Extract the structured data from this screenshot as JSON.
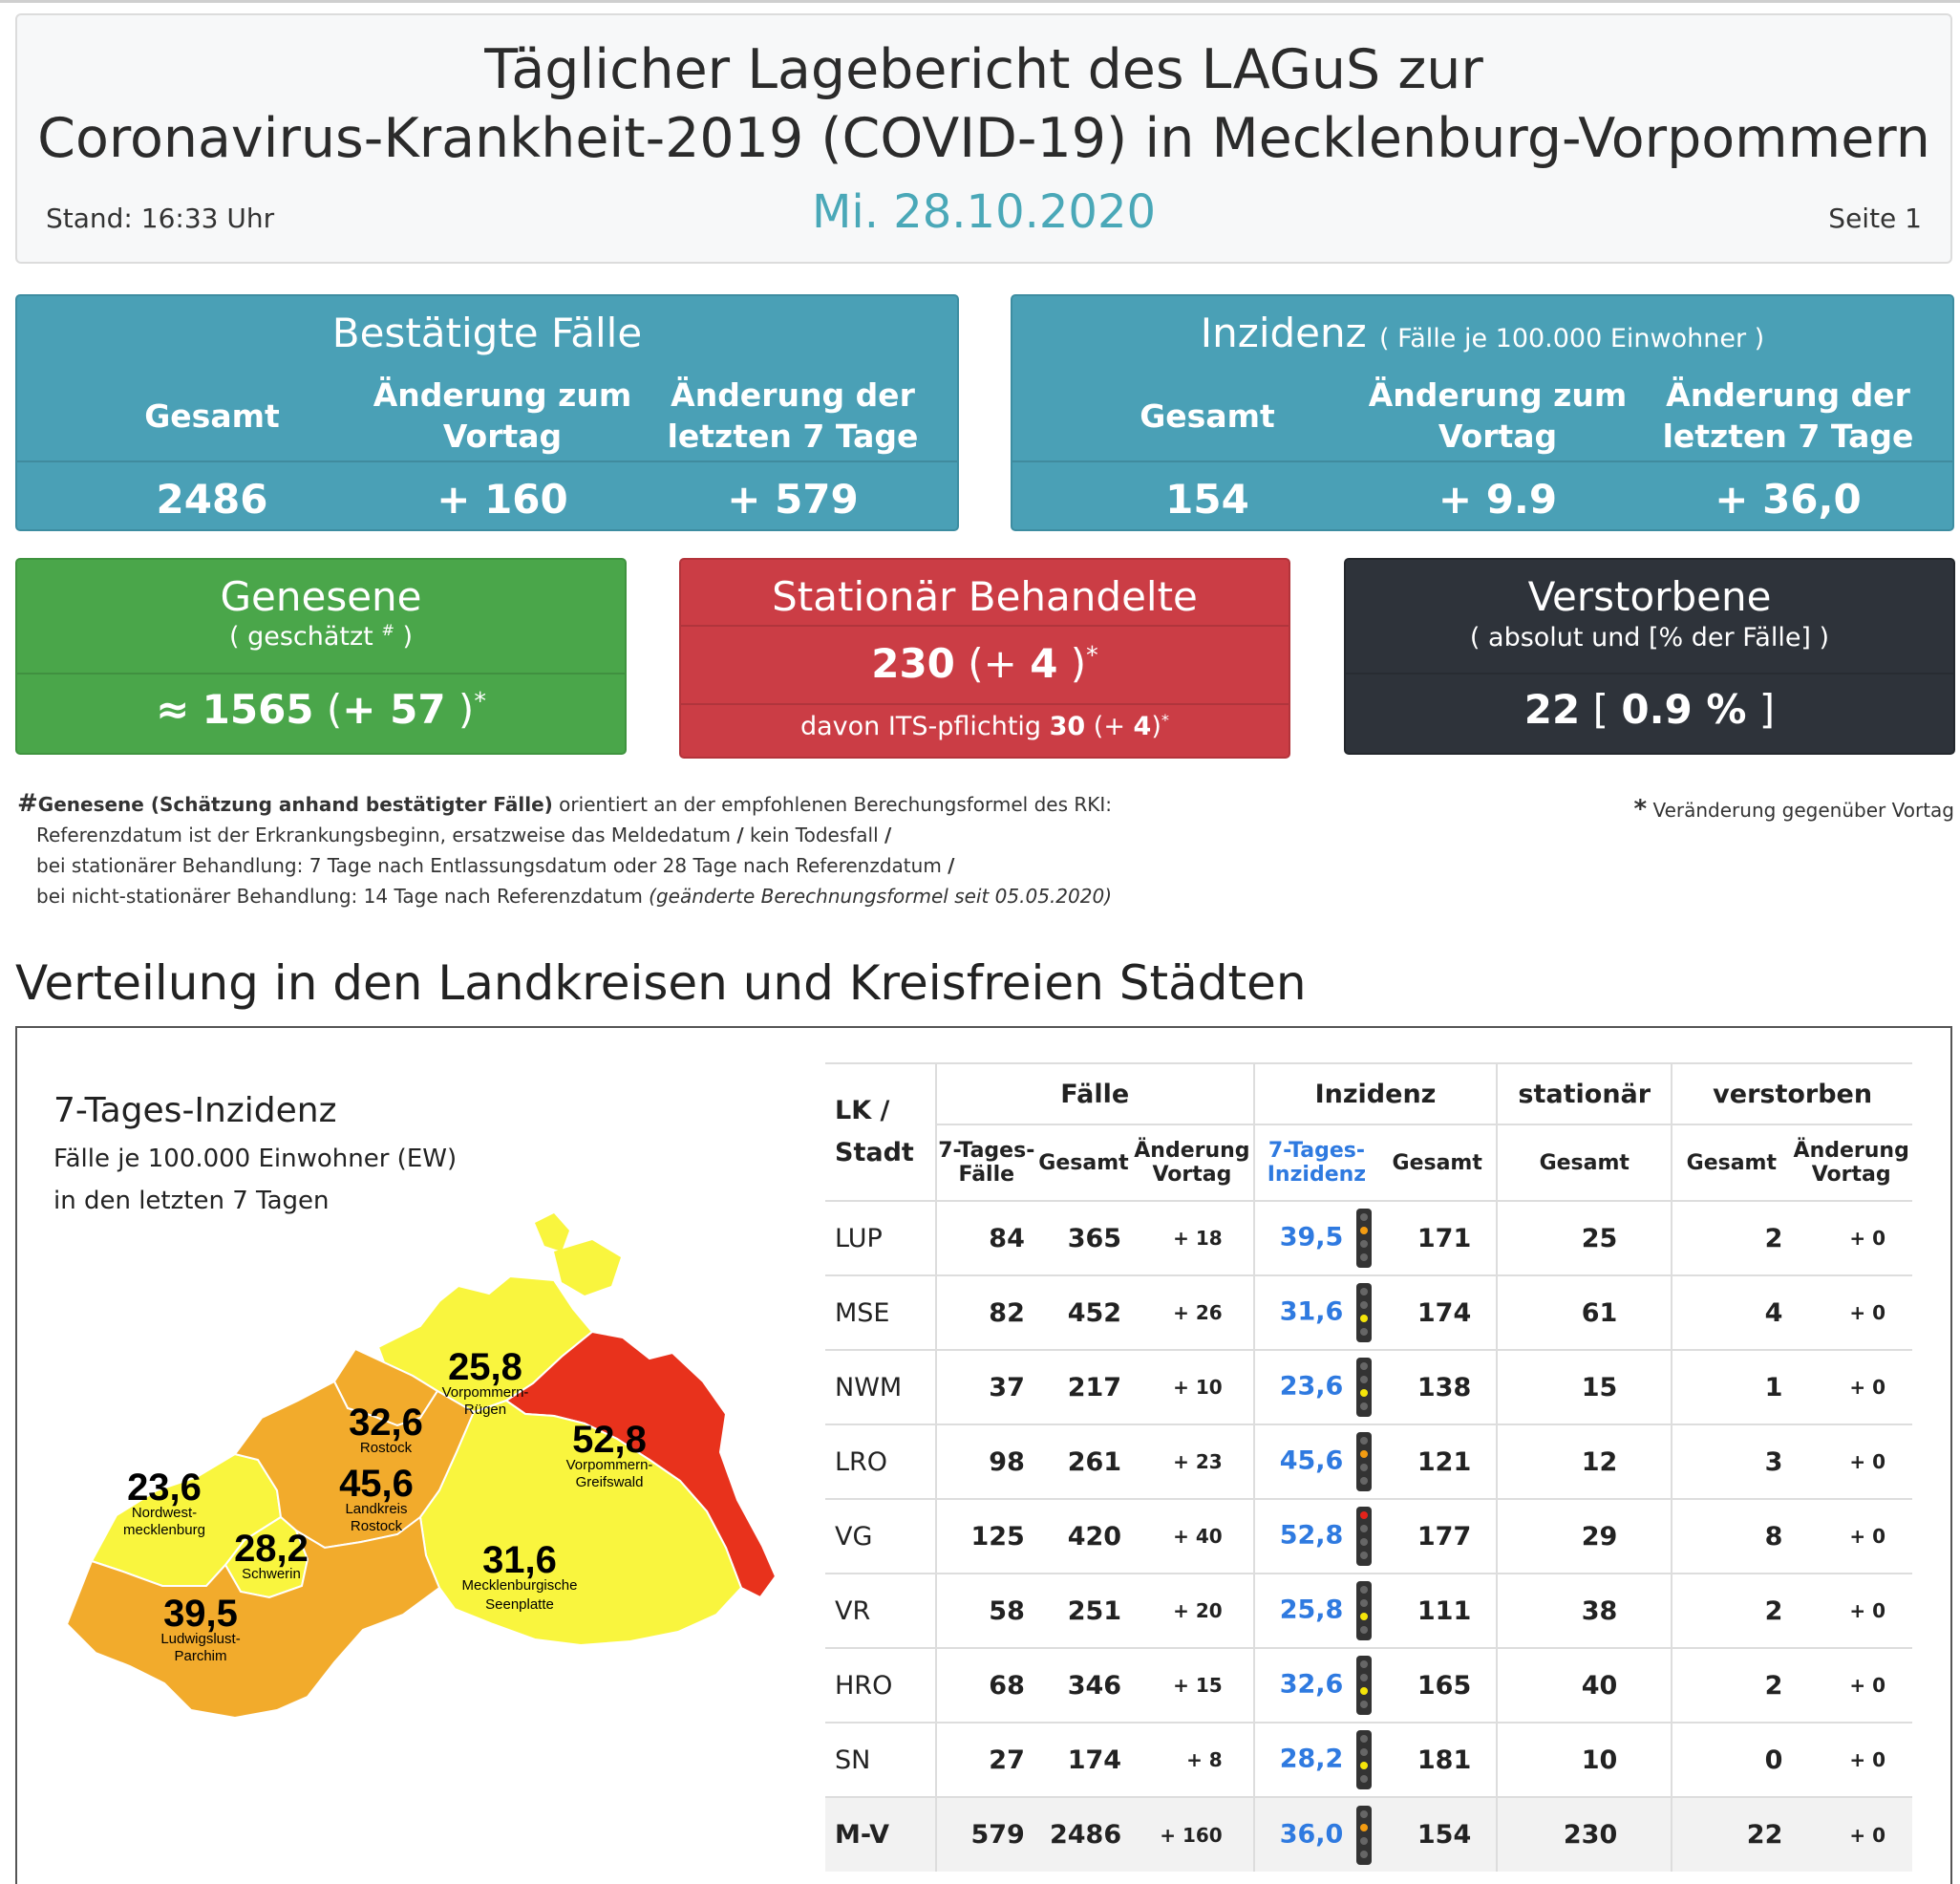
{
  "header": {
    "title_line1": "Täglicher Lagebericht des LAGuS zur",
    "title_line2": "Coronavirus-Krankheit-2019 (COVID-19) in Mecklenburg-Vorpommern",
    "stand": "Stand: 16:33 Uhr",
    "date": "Mi. 28.10.2020",
    "page": "Seite 1"
  },
  "confirmed": {
    "title": "Bestätigte Fälle",
    "col1": "Gesamt",
    "col2": "Änderung zum Vortag",
    "col3": "Änderung der letzten 7 Tage",
    "v1": "2486",
    "v2": "+ 160",
    "v3": "+ 579"
  },
  "incidence": {
    "title": "Inzidenz",
    "subtitle": "( Fälle je 100.000 Einwohner )",
    "col1": "Gesamt",
    "col2": "Änderung zum Vortag",
    "col3": "Änderung der letzten 7 Tage",
    "v1": "154",
    "v2": "+ 9.9",
    "v3": "+ 36,0"
  },
  "recovered": {
    "title": "Genesene",
    "subtitle_pre": "( geschätzt ",
    "subtitle_mark": "#",
    "subtitle_post": " )",
    "approx": "≈",
    "value": "1565",
    "change": "+ 57",
    "star": "*"
  },
  "hospital": {
    "title": "Stationär Behandelte",
    "value": "230",
    "change": "+ 4",
    "star": "*",
    "its_label": "davon ITS-pflichtig",
    "its_value": "30",
    "its_change": "4"
  },
  "deaths": {
    "title": "Verstorbene",
    "subtitle": "( absolut und [% der Fälle] )",
    "value": "22",
    "pct": "0.9 %"
  },
  "notes": {
    "hash": "#",
    "bold": "Genesene (Schätzung anhand bestätigter Fälle)",
    "line1": " orientiert an der empfohlenen Berechungsformel des RKI:",
    "line2": "Referenzdatum ist der Erkrankungsbeginn, ersatzweise das Meldedatum",
    "line2b": "kein Todesfall",
    "line3": "bei stationärer Behandlung: 7 Tage nach Entlassungsdatum oder 28 Tage nach Referenzdatum",
    "line4": "bei nicht-stationärer Behandlung: 14 Tage nach Referenzdatum ",
    "line4i": "(geänderte Berechnungsformel seit 05.05.2020)",
    "slash": "/",
    "star": "*",
    "right": "Veränderung gegenüber Vortag"
  },
  "section_title": "Verteilung in den Landkreisen und Kreisfreien Städten",
  "map": {
    "title": "7-Tages-Inzidenz",
    "sub1": "Fälle je 100.000 Einwohner (EW)",
    "sub2": "in den letzten 7 Tagen",
    "regions": [
      {
        "value": "25,8",
        "name1": "Vorpommern-",
        "name2": "Rügen",
        "color": "#f9f53e"
      },
      {
        "value": "32,6",
        "name1": "Rostock",
        "name2": "",
        "color": "#f2ab2c"
      },
      {
        "value": "52,8",
        "name1": "Vorpommern-",
        "name2": "Greifswald",
        "color": "#e8321c"
      },
      {
        "value": "23,6",
        "name1": "Nordwest-",
        "name2": "mecklenburg",
        "color": "#f9f53e"
      },
      {
        "value": "45,6",
        "name1": "Landkreis",
        "name2": "Rostock",
        "color": "#f2ab2c"
      },
      {
        "value": "28,2",
        "name1": "Schwerin",
        "name2": "",
        "color": "#f9f53e"
      },
      {
        "value": "31,6",
        "name1": "Mecklenburgische",
        "name2": "Seenplatte",
        "color": "#f9f53e"
      },
      {
        "value": "39,5",
        "name1": "Ludwigslust-",
        "name2": "Parchim",
        "color": "#f2ab2c"
      }
    ]
  },
  "table": {
    "h_lk": "LK /",
    "h_stadt": "Stadt",
    "h_faelle": "Fälle",
    "h_inzidenz": "Inzidenz",
    "h_stationaer": "stationär",
    "h_verstorben": "verstorben",
    "s_7tf1": "7-Tages-",
    "s_7tf2": "Fälle",
    "s_gesamt": "Gesamt",
    "s_aend1": "Änderung",
    "s_aend2": "Vortag",
    "s_7ti1": "7-Tages-",
    "s_7ti2": "Inzidenz",
    "rows": [
      {
        "lk": "LUP",
        "f7": "84",
        "fg": "365",
        "fa": "+ 18",
        "i7": "39,5",
        "light": "orange",
        "ig": "171",
        "st": "25",
        "vg": "2",
        "va": "+ 0"
      },
      {
        "lk": "MSE",
        "f7": "82",
        "fg": "452",
        "fa": "+ 26",
        "i7": "31,6",
        "light": "yellow",
        "ig": "174",
        "st": "61",
        "vg": "4",
        "va": "+ 0"
      },
      {
        "lk": "NWM",
        "f7": "37",
        "fg": "217",
        "fa": "+ 10",
        "i7": "23,6",
        "light": "yellow",
        "ig": "138",
        "st": "15",
        "vg": "1",
        "va": "+ 0"
      },
      {
        "lk": "LRO",
        "f7": "98",
        "fg": "261",
        "fa": "+ 23",
        "i7": "45,6",
        "light": "orange",
        "ig": "121",
        "st": "12",
        "vg": "3",
        "va": "+ 0"
      },
      {
        "lk": "VG",
        "f7": "125",
        "fg": "420",
        "fa": "+ 40",
        "i7": "52,8",
        "light": "red",
        "ig": "177",
        "st": "29",
        "vg": "8",
        "va": "+ 0"
      },
      {
        "lk": "VR",
        "f7": "58",
        "fg": "251",
        "fa": "+ 20",
        "i7": "25,8",
        "light": "yellow",
        "ig": "111",
        "st": "38",
        "vg": "2",
        "va": "+ 0"
      },
      {
        "lk": "HRO",
        "f7": "68",
        "fg": "346",
        "fa": "+ 15",
        "i7": "32,6",
        "light": "yellow",
        "ig": "165",
        "st": "40",
        "vg": "2",
        "va": "+ 0"
      },
      {
        "lk": "SN",
        "f7": "27",
        "fg": "174",
        "fa": "+ 8",
        "i7": "28,2",
        "light": "yellow",
        "ig": "181",
        "st": "10",
        "vg": "0",
        "va": "+ 0"
      },
      {
        "lk": "M-V",
        "f7": "579",
        "fg": "2486",
        "fa": "+ 160",
        "i7": "36,0",
        "light": "orange",
        "ig": "154",
        "st": "230",
        "vg": "22",
        "va": "+ 0",
        "total": true
      }
    ]
  },
  "colors": {
    "teal": "#4aa0b6",
    "green": "#4aa64a",
    "red": "#cb3d45",
    "dark": "#2e333a",
    "date": "#4aa8b8",
    "link": "#2f7ae0"
  }
}
